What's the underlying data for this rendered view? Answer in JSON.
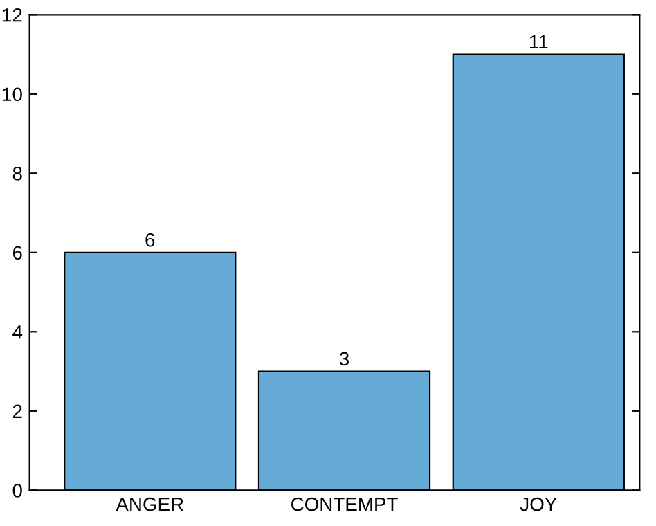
{
  "chart_data": {
    "type": "bar",
    "categories": [
      "ANGER",
      "CONTEMPT",
      "JOY"
    ],
    "values": [
      6,
      3,
      11
    ],
    "color": "#66aad8",
    "ylim": [
      0,
      12
    ],
    "yticks": [
      0,
      2,
      4,
      6,
      8,
      10,
      12
    ],
    "data_labels": true,
    "grid": false,
    "legend": false
  }
}
